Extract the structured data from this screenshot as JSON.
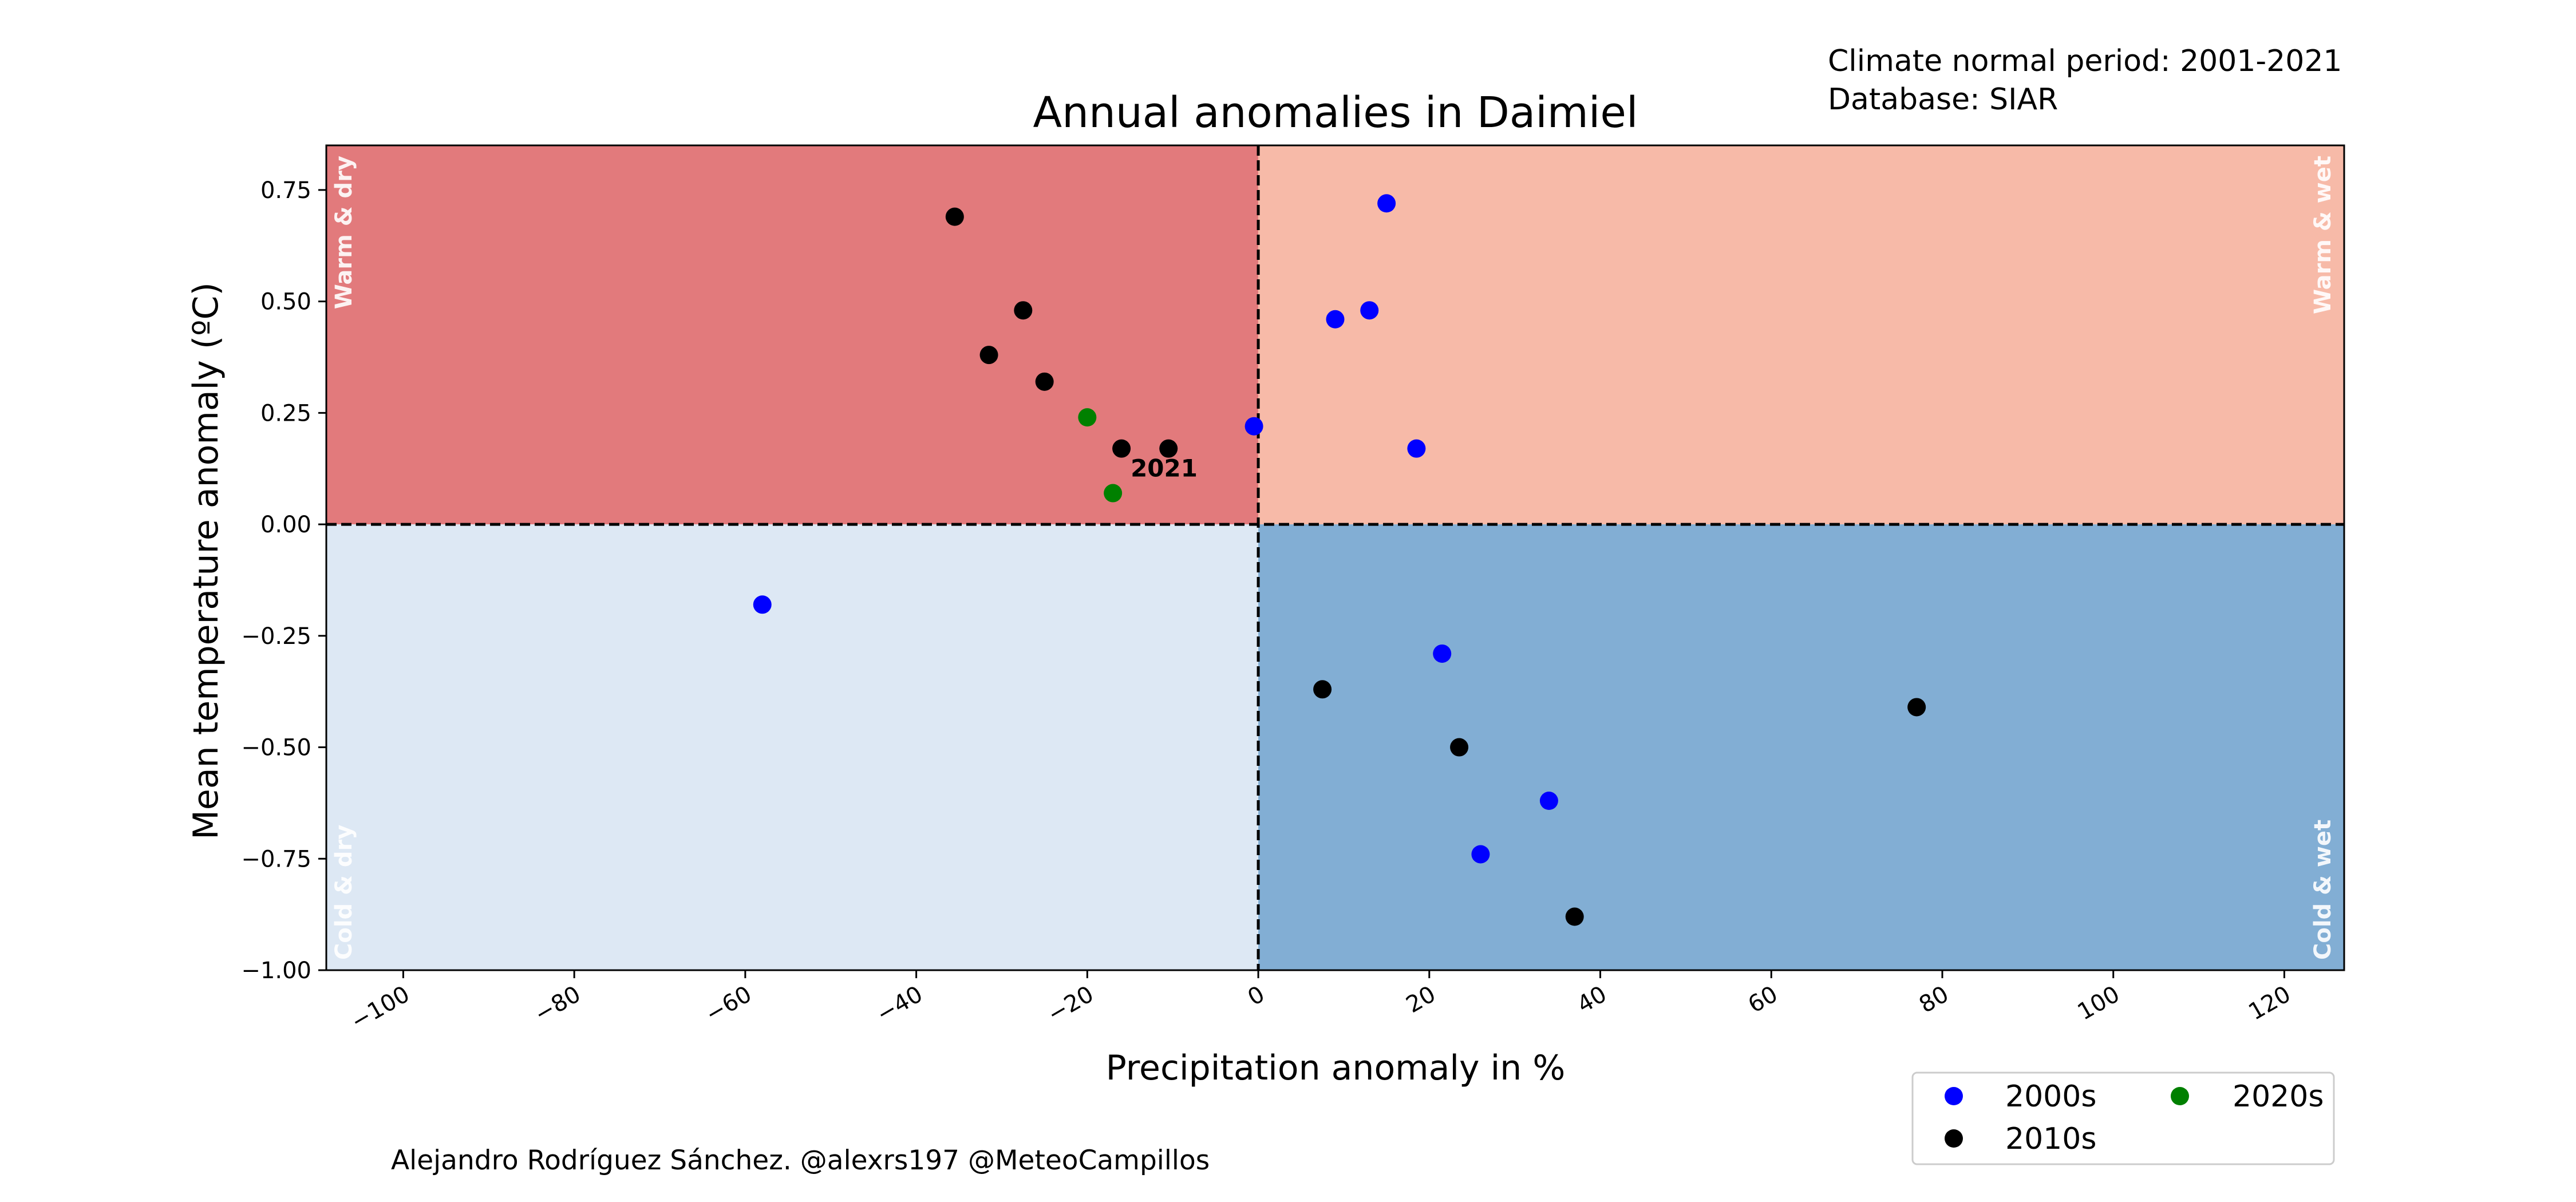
{
  "chart_data": {
    "type": "scatter",
    "title": "Annual anomalies in Daimiel",
    "xlabel": "Precipitation anomaly in %",
    "ylabel": "Mean temperature anomaly (ºC)",
    "xlim": [
      -109,
      127
    ],
    "ylim": [
      -1.0,
      0.85
    ],
    "xticks": [
      -100,
      -80,
      -60,
      -40,
      -20,
      0,
      20,
      40,
      60,
      80,
      100,
      120
    ],
    "xtick_labels": [
      "−100",
      "−80",
      "−60",
      "−40",
      "−20",
      "0",
      "20",
      "40",
      "60",
      "80",
      "100",
      "120"
    ],
    "yticks": [
      -1.0,
      -0.75,
      -0.5,
      -0.25,
      0.0,
      0.25,
      0.5,
      0.75
    ],
    "ytick_labels": [
      "−1.00",
      "−0.75",
      "−0.50",
      "−0.25",
      "0.00",
      "0.25",
      "0.50",
      "0.75"
    ],
    "grid": false,
    "legend_position": "bottom-right",
    "quadrants": [
      {
        "label": "Warm & dry",
        "color": "#e27a7c",
        "xrange": [
          -109,
          0
        ],
        "yrange": [
          0,
          0.85
        ]
      },
      {
        "label": "Warm & wet",
        "color": "#f7baa8",
        "xrange": [
          0,
          127
        ],
        "yrange": [
          0,
          0.85
        ]
      },
      {
        "label": "Cold & dry",
        "color": "#dde8f4",
        "xrange": [
          -109,
          0
        ],
        "yrange": [
          -1.0,
          0
        ]
      },
      {
        "label": "Cold & wet",
        "color": "#82aed4",
        "xrange": [
          0,
          127
        ],
        "yrange": [
          -1.0,
          0
        ]
      }
    ],
    "series": [
      {
        "name": "2000s",
        "color": "#0000ff",
        "points": [
          {
            "x": -58,
            "y": -0.18
          },
          {
            "x": -0.5,
            "y": 0.22
          },
          {
            "x": 9,
            "y": 0.46
          },
          {
            "x": 13,
            "y": 0.48
          },
          {
            "x": 15,
            "y": 0.72
          },
          {
            "x": 18.5,
            "y": 0.17
          },
          {
            "x": 21.5,
            "y": -0.29
          },
          {
            "x": 26,
            "y": -0.74
          },
          {
            "x": 34,
            "y": -0.62
          }
        ]
      },
      {
        "name": "2010s",
        "color": "#000000",
        "points": [
          {
            "x": -35.5,
            "y": 0.69
          },
          {
            "x": -31.5,
            "y": 0.38
          },
          {
            "x": -27.5,
            "y": 0.48
          },
          {
            "x": -25,
            "y": 0.32
          },
          {
            "x": -16,
            "y": 0.17
          },
          {
            "x": -10.5,
            "y": 0.17
          },
          {
            "x": 7.5,
            "y": -0.37
          },
          {
            "x": 23.5,
            "y": -0.5
          },
          {
            "x": 37,
            "y": -0.88
          },
          {
            "x": 77,
            "y": -0.41
          }
        ]
      },
      {
        "name": "2020s",
        "color": "#008000",
        "points": [
          {
            "x": -20,
            "y": 0.24
          },
          {
            "x": -17,
            "y": 0.07
          }
        ]
      }
    ],
    "annotations": [
      {
        "text": "2021",
        "x": -16,
        "y": 0.07
      }
    ],
    "info_lines": [
      "Climate normal period: 2001-2021",
      "Database: SIAR"
    ],
    "credit": "Alejandro Rodríguez Sánchez. @alexrs197 @MeteoCampillos"
  }
}
